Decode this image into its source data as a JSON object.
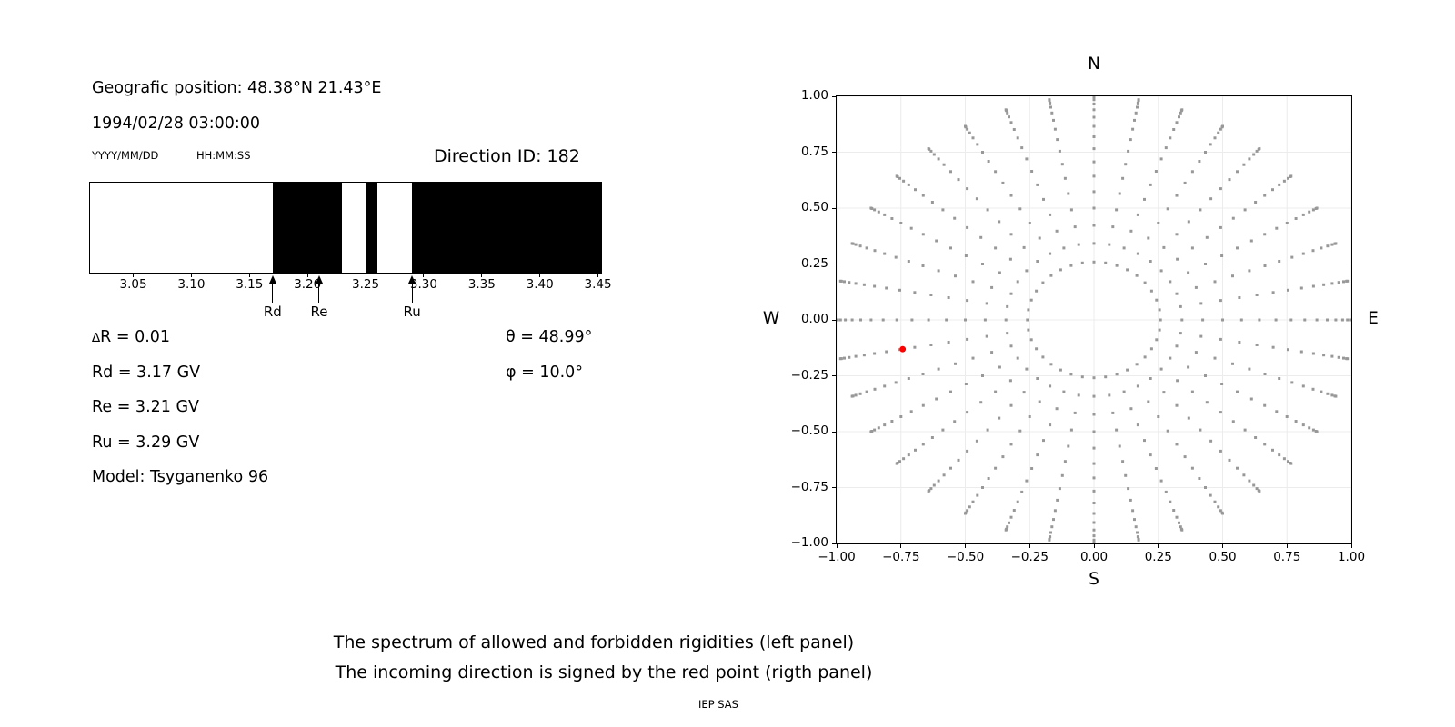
{
  "header": {
    "position_line": "Geografic position: 48.38°N 21.43°E",
    "datetime_line": "1994/02/28 03:00:00",
    "date_format_hint": "YYYY/MM/DD",
    "time_format_hint": "HH:MM:SS",
    "direction_id_label": "Direction ID: 182"
  },
  "info": {
    "delta_r": "∆R = 0.01",
    "rd": "Rd = 3.17 GV",
    "re": "Re = 3.21 GV",
    "ru": "Ru = 3.29 GV",
    "model": "Model: Tsyganenko 96",
    "theta": "θ = 48.99°",
    "phi": "φ = 10.0°"
  },
  "caption": {
    "line1": "The spectrum of allowed and forbidden rigidities (left panel)",
    "line2": "The incoming direction is signed by the red point (rigth panel)",
    "credit": "IEP SAS"
  },
  "colors": {
    "forbidden": "#000000",
    "allowed": "#ffffff",
    "grid_dot": "#989898",
    "red_point": "#ff0000",
    "gridline": "#ececec",
    "axis": "#000000"
  },
  "chart_data": [
    {
      "type": "bar",
      "title": "",
      "xlabel": "",
      "ylabel": "",
      "xlim": [
        3.012,
        3.4535
      ],
      "xticks": [
        3.05,
        3.1,
        3.15,
        3.2,
        3.25,
        3.3,
        3.35,
        3.4,
        3.45
      ],
      "delta_r_gv": 0.01,
      "allowed_segments_gv": [
        [
          3.012,
          3.17
        ],
        [
          3.23,
          3.25
        ],
        [
          3.26,
          3.29
        ]
      ],
      "forbidden_segments_gv": [
        [
          3.17,
          3.23
        ],
        [
          3.25,
          3.26
        ],
        [
          3.29,
          3.4535
        ]
      ],
      "markers": [
        {
          "label": "Rd",
          "gv": 3.17
        },
        {
          "label": "Re",
          "gv": 3.21
        },
        {
          "label": "Ru",
          "gv": 3.29
        }
      ]
    },
    {
      "type": "scatter",
      "title": "",
      "xlim": [
        -1.0,
        1.0
      ],
      "ylim": [
        -1.0,
        1.0
      ],
      "xticks": [
        -1.0,
        -0.75,
        -0.5,
        -0.25,
        0.0,
        0.25,
        0.5,
        0.75,
        1.0
      ],
      "yticks": [
        -1.0,
        -0.75,
        -0.5,
        -0.25,
        0.0,
        0.25,
        0.5,
        0.75,
        1.0
      ],
      "grid": true,
      "compass_labels": {
        "top": "N",
        "bottom": "S",
        "left": "W",
        "right": "E"
      },
      "direction_grid": {
        "azimuth_deg_start": 0,
        "azimuth_deg_step": 10,
        "azimuth_count": 36,
        "zenith_deg_start": 15,
        "zenith_deg_step": 5,
        "zenith_deg_end": 90,
        "radius_rule": "sin(zenith)"
      },
      "red_point": {
        "x": -0.743,
        "y": -0.131,
        "theta_deg": 48.99,
        "phi_deg": 10.0
      }
    }
  ]
}
